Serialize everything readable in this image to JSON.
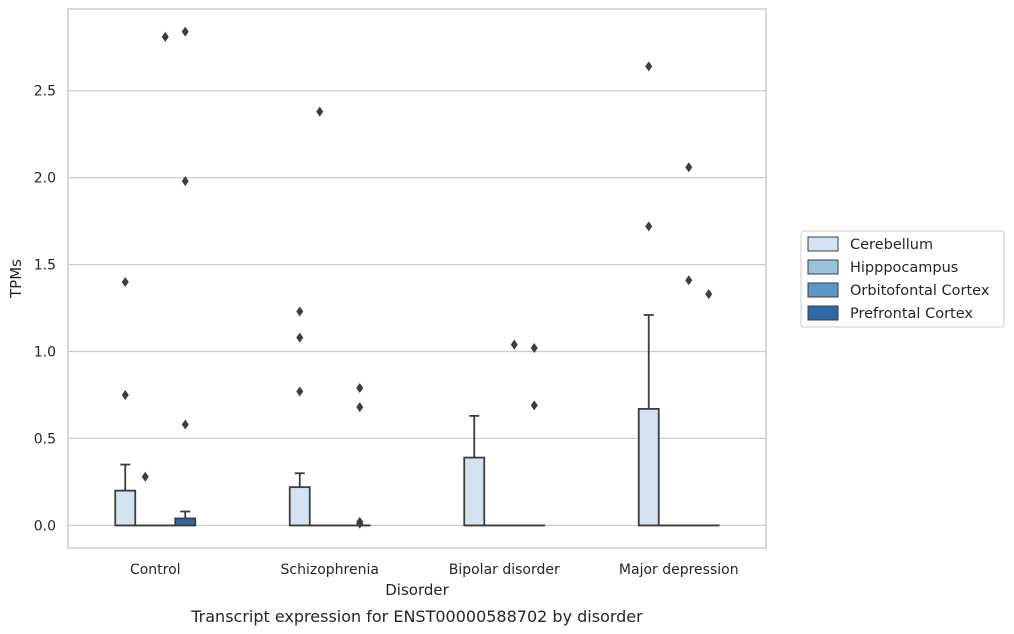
{
  "chart_data": {
    "type": "box",
    "caption": "Transcript expression for ENST00000588702 by disorder",
    "xlabel": "Disorder",
    "ylabel": "TPMs",
    "categories": [
      "Control",
      "Schizophrenia",
      "Bipolar disorder",
      "Major depression"
    ],
    "ylim": [
      -0.13,
      2.97
    ],
    "yticks": [
      0.0,
      0.5,
      1.0,
      1.5,
      2.0,
      2.5
    ],
    "ytick_labels": [
      "0.0",
      "0.5",
      "1.0",
      "1.5",
      "2.0",
      "2.5"
    ],
    "grid": true,
    "legend_position": "right",
    "series": [
      {
        "name": "Cerebellum",
        "color": "#d3e3f1",
        "boxes": [
          {
            "q1": 0.0,
            "median": 0.0,
            "q3": 0.2,
            "whisker_low": 0.0,
            "whisker_high": 0.35,
            "outliers": [
              1.4,
              0.75
            ]
          },
          {
            "q1": 0.0,
            "median": 0.0,
            "q3": 0.22,
            "whisker_low": 0.0,
            "whisker_high": 0.3,
            "outliers": [
              1.23,
              1.08,
              0.77
            ]
          },
          {
            "q1": 0.0,
            "median": 0.0,
            "q3": 0.39,
            "whisker_low": 0.0,
            "whisker_high": 0.63,
            "outliers": []
          },
          {
            "q1": 0.0,
            "median": 0.0,
            "q3": 0.67,
            "whisker_low": 0.0,
            "whisker_high": 1.21,
            "outliers": [
              2.64,
              1.72
            ]
          }
        ]
      },
      {
        "name": "Hipppocampus",
        "color": "#9ac2dd",
        "boxes": [
          {
            "q1": 0.0,
            "median": 0.0,
            "q3": 0.0,
            "whisker_low": 0.0,
            "whisker_high": 0.0,
            "outliers": [
              0.28
            ]
          },
          {
            "q1": 0.0,
            "median": 0.0,
            "q3": 0.0,
            "whisker_low": 0.0,
            "whisker_high": 0.0,
            "outliers": [
              2.38
            ]
          },
          {
            "q1": 0.0,
            "median": 0.0,
            "q3": 0.0,
            "whisker_low": 0.0,
            "whisker_high": 0.0,
            "outliers": []
          },
          {
            "q1": 0.0,
            "median": 0.0,
            "q3": 0.0,
            "whisker_low": 0.0,
            "whisker_high": 0.0,
            "outliers": []
          }
        ]
      },
      {
        "name": "Orbitofontal Cortex",
        "color": "#5b96c4",
        "boxes": [
          {
            "q1": 0.0,
            "median": 0.0,
            "q3": 0.0,
            "whisker_low": 0.0,
            "whisker_high": 0.0,
            "outliers": [
              2.81
            ]
          },
          {
            "q1": 0.0,
            "median": 0.0,
            "q3": 0.0,
            "whisker_low": 0.0,
            "whisker_high": 0.0,
            "outliers": []
          },
          {
            "q1": 0.0,
            "median": 0.0,
            "q3": 0.0,
            "whisker_low": 0.0,
            "whisker_high": 0.0,
            "outliers": [
              1.04
            ]
          },
          {
            "q1": 0.0,
            "median": 0.0,
            "q3": 0.0,
            "whisker_low": 0.0,
            "whisker_high": 0.0,
            "outliers": [
              2.06,
              1.41
            ]
          }
        ]
      },
      {
        "name": "Prefrontal Cortex",
        "color": "#2e69a6",
        "boxes": [
          {
            "q1": 0.0,
            "median": 0.0,
            "q3": 0.04,
            "whisker_low": 0.0,
            "whisker_high": 0.08,
            "outliers": [
              2.84,
              1.98,
              0.58
            ]
          },
          {
            "q1": 0.0,
            "median": 0.0,
            "q3": 0.0,
            "whisker_low": 0.0,
            "whisker_high": 0.0,
            "outliers": [
              0.79,
              0.68,
              0.02,
              0.01
            ]
          },
          {
            "q1": 0.0,
            "median": 0.0,
            "q3": 0.0,
            "whisker_low": 0.0,
            "whisker_high": 0.0,
            "outliers": [
              1.02,
              0.69
            ]
          },
          {
            "q1": 0.0,
            "median": 0.0,
            "q3": 0.0,
            "whisker_low": 0.0,
            "whisker_high": 0.0,
            "outliers": [
              1.33
            ]
          }
        ]
      }
    ]
  }
}
